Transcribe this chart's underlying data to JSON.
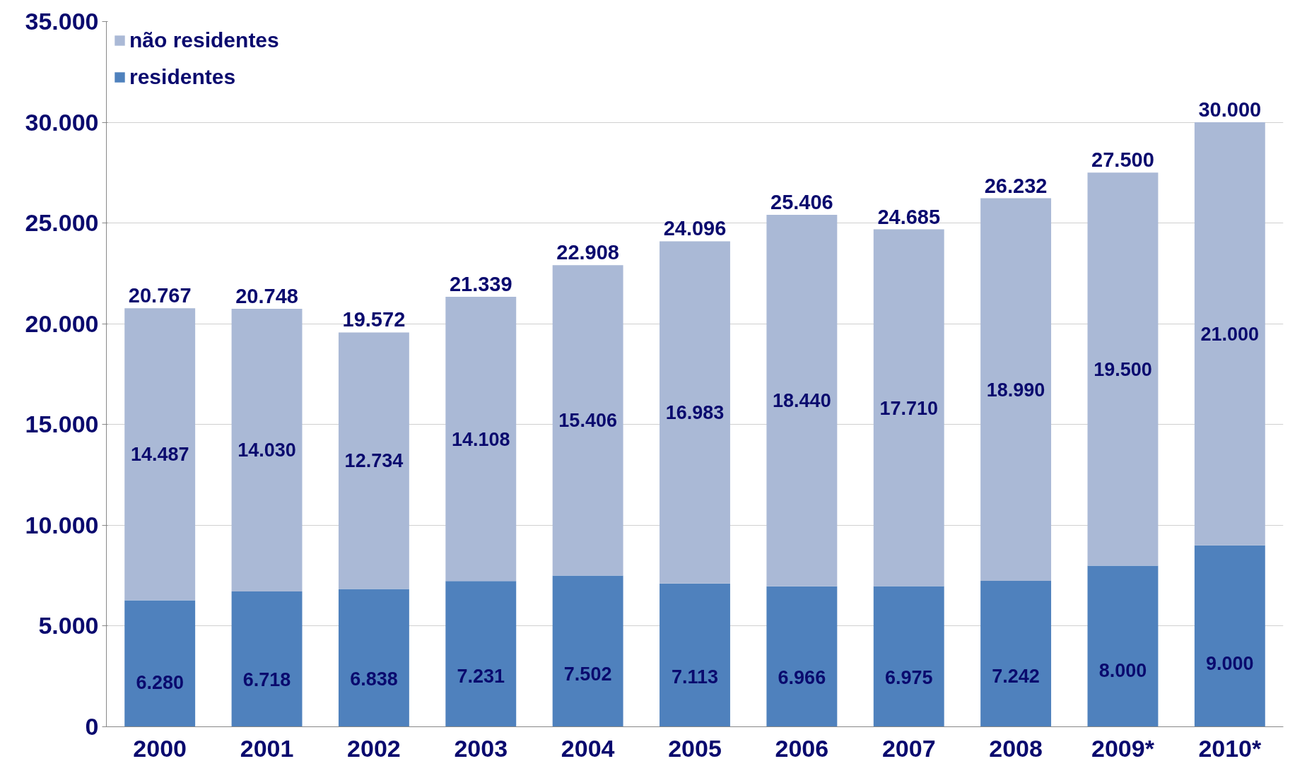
{
  "chart_data": {
    "type": "bar",
    "stacked": true,
    "categories": [
      "2000",
      "2001",
      "2002",
      "2003",
      "2004",
      "2005",
      "2006",
      "2007",
      "2008",
      "2009*",
      "2010*"
    ],
    "series": [
      {
        "name": "residentes",
        "color": "#4f81bd",
        "values": [
          6280,
          6718,
          6838,
          7231,
          7502,
          7113,
          6966,
          6975,
          7242,
          8000,
          9000
        ],
        "value_labels": [
          "6.280",
          "6.718",
          "6.838",
          "7.231",
          "7.502",
          "7.113",
          "6.966",
          "6.975",
          "7.242",
          "8.000",
          "9.000"
        ]
      },
      {
        "name": "não residentes",
        "color": "#aab9d6",
        "values": [
          14487,
          14030,
          12734,
          14108,
          15406,
          16983,
          18440,
          17710,
          18990,
          19500,
          21000
        ],
        "value_labels": [
          "14.487",
          "14.030",
          "12.734",
          "14.108",
          "15.406",
          "16.983",
          "18.440",
          "17.710",
          "18.990",
          "19.500",
          "21.000"
        ]
      }
    ],
    "totals": [
      "20.767",
      "20.748",
      "19.572",
      "21.339",
      "22.908",
      "24.096",
      "25.406",
      "24.685",
      "26.232",
      "27.500",
      "30.000"
    ],
    "ylim": [
      0,
      35000
    ],
    "yticks": [
      {
        "value": 0,
        "label": "0"
      },
      {
        "value": 5000,
        "label": "5.000"
      },
      {
        "value": 10000,
        "label": "10.000"
      },
      {
        "value": 15000,
        "label": "15.000"
      },
      {
        "value": 20000,
        "label": "20.000"
      },
      {
        "value": 25000,
        "label": "25.000"
      },
      {
        "value": 30000,
        "label": "30.000"
      },
      {
        "value": 35000,
        "label": "35.000"
      }
    ],
    "grid": "y",
    "legend": "top left"
  }
}
